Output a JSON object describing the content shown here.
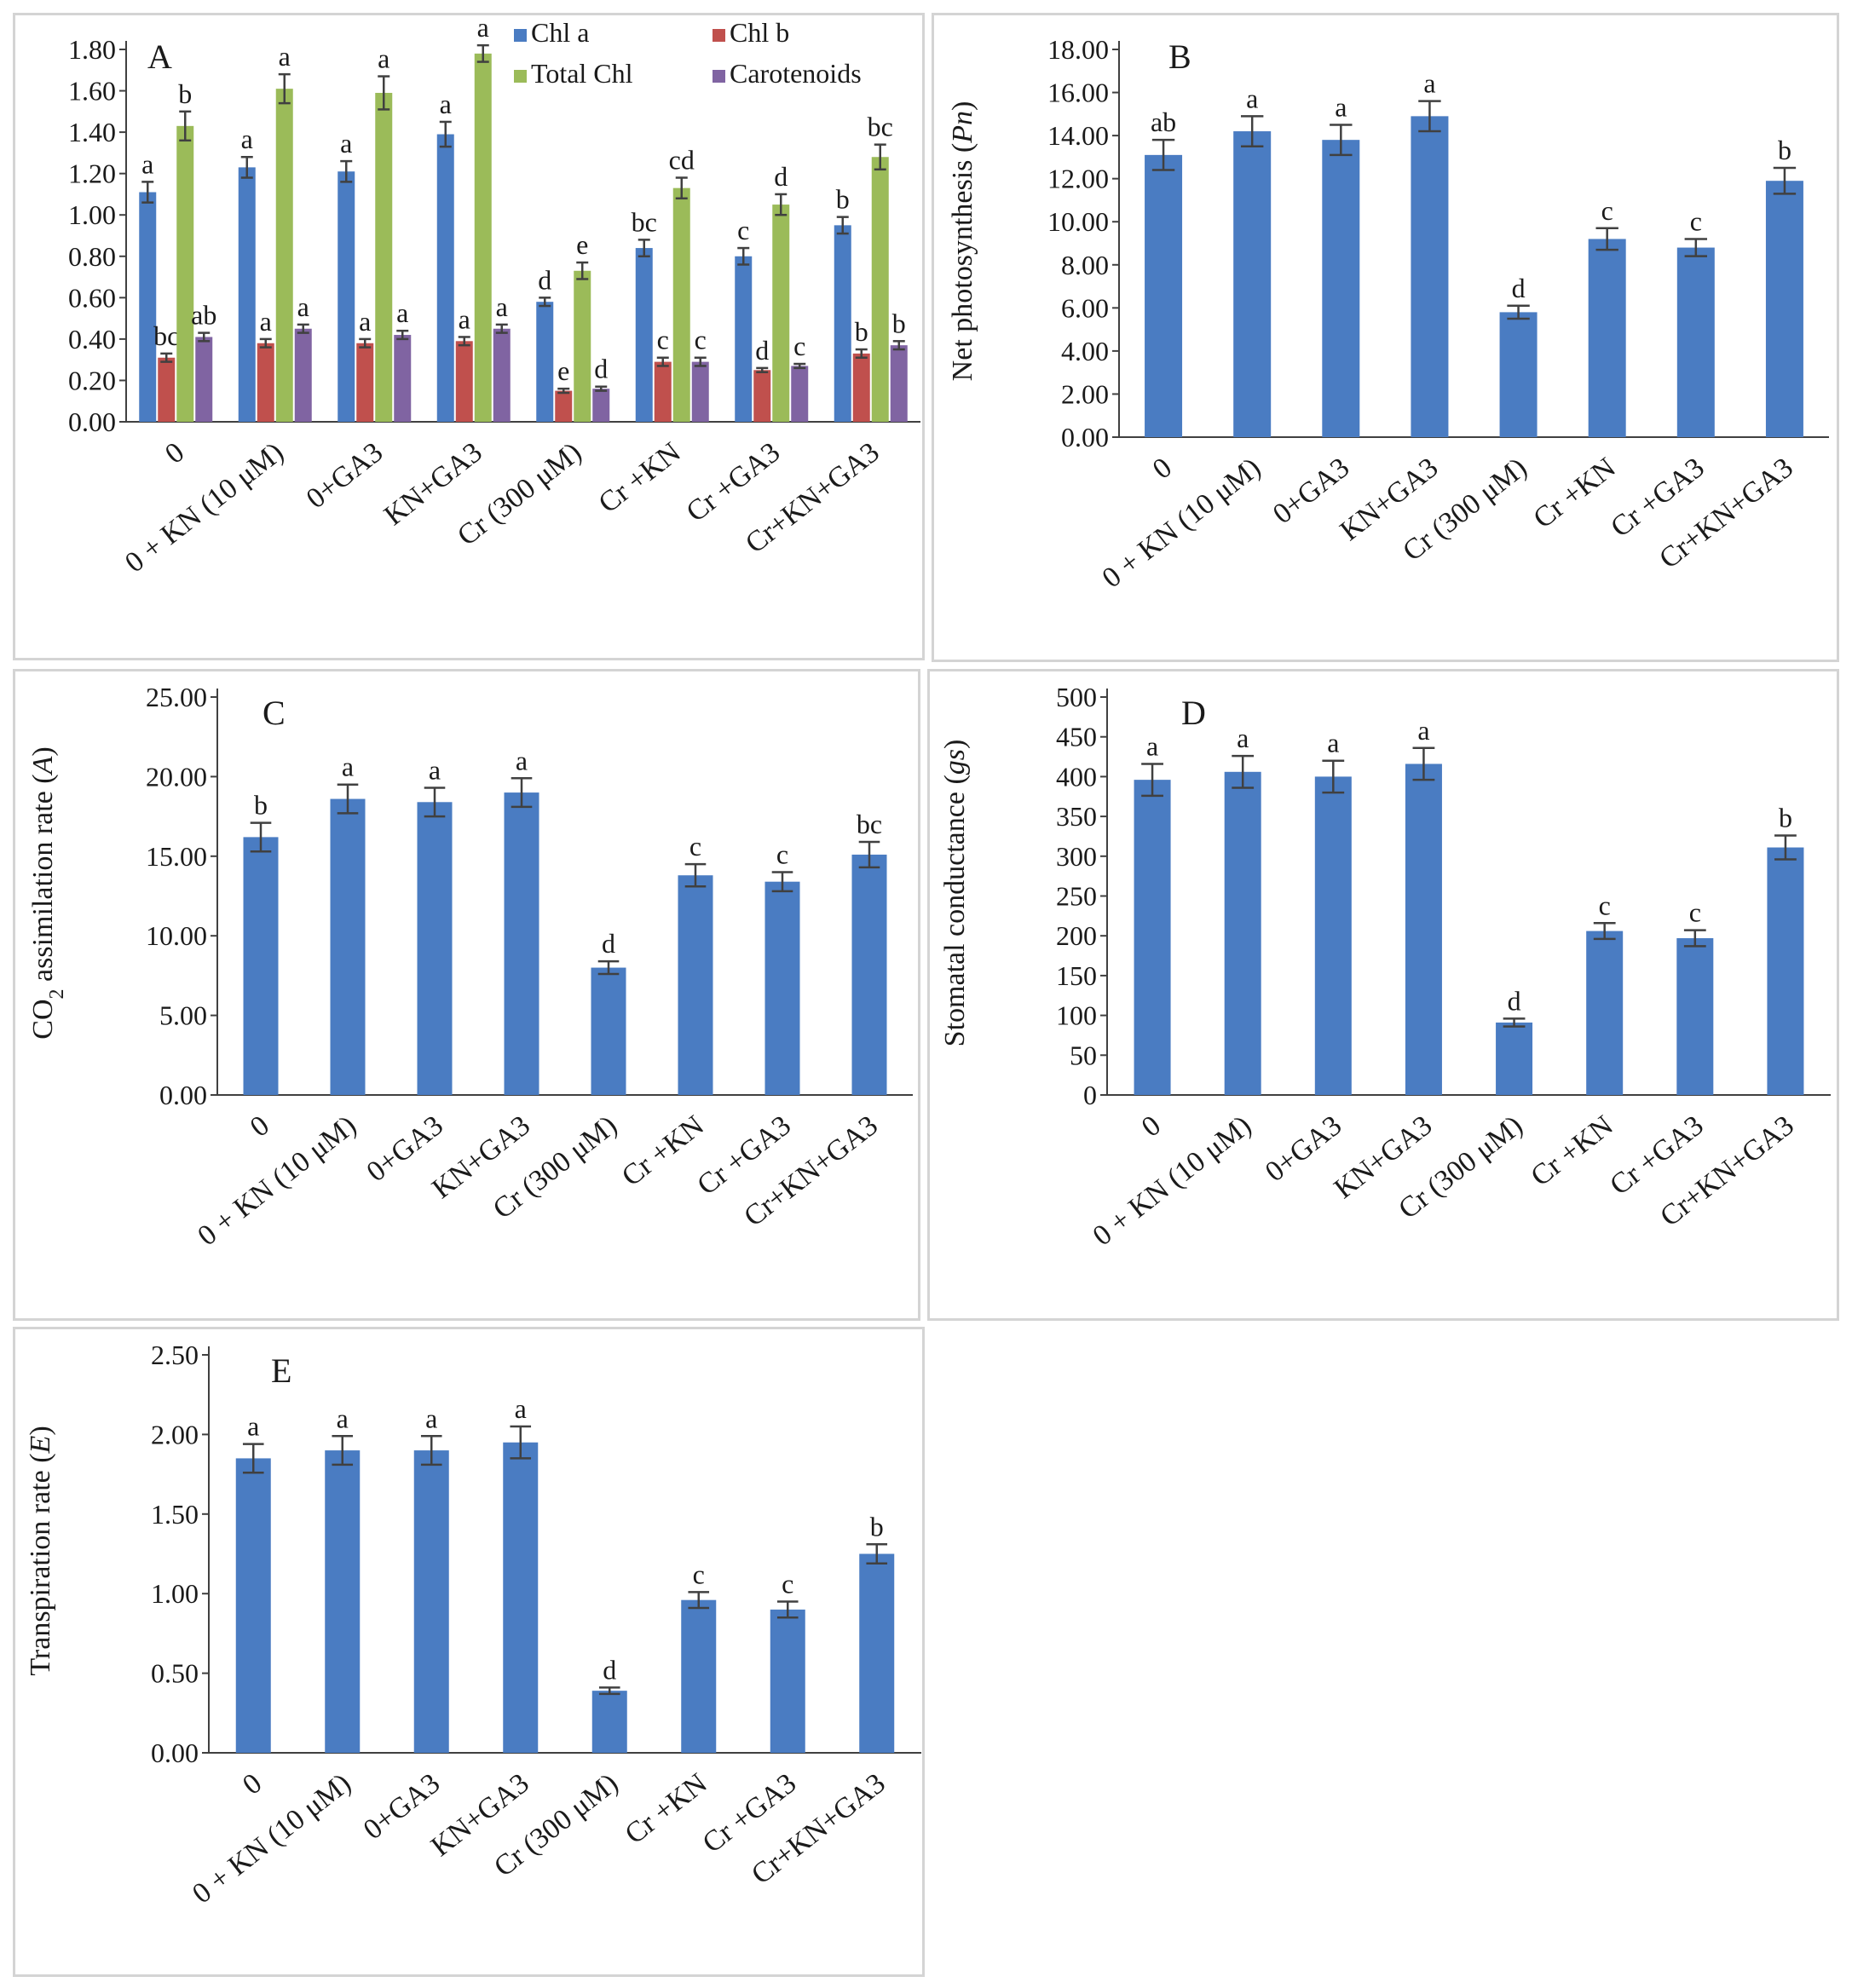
{
  "chart_data": [
    {
      "type": "bar",
      "panel_label": "A",
      "ylabel": "",
      "ylim": [
        0,
        1.8
      ],
      "yticks": [
        "0.00",
        "0.20",
        "0.40",
        "0.60",
        "0.80",
        "1.00",
        "1.20",
        "1.40",
        "1.60",
        "1.80"
      ],
      "categories": [
        "0",
        "0 + KN (10 μM)",
        "0+GA3",
        "KN+GA3",
        "Cr (300 μM)",
        "Cr +KN",
        "Cr +GA3",
        "Cr+KN+GA3"
      ],
      "series": [
        {
          "name": "Chl a",
          "color": "#4a7cc2",
          "values": [
            1.11,
            1.23,
            1.21,
            1.39,
            0.58,
            0.84,
            0.8,
            0.95
          ],
          "errors": [
            0.05,
            0.05,
            0.05,
            0.06,
            0.02,
            0.04,
            0.04,
            0.04
          ],
          "labels": [
            "a",
            "a",
            "a",
            "a",
            "d",
            "bc",
            "c",
            "b"
          ]
        },
        {
          "name": "Chl b",
          "color": "#c0504d",
          "values": [
            0.31,
            0.38,
            0.38,
            0.39,
            0.15,
            0.29,
            0.25,
            0.33
          ],
          "errors": [
            0.02,
            0.02,
            0.02,
            0.02,
            0.01,
            0.02,
            0.01,
            0.02
          ],
          "labels": [
            "bc",
            "a",
            "a",
            "a",
            "e",
            "c",
            "d",
            "b"
          ]
        },
        {
          "name": "Total Chl",
          "color": "#9bbb59",
          "values": [
            1.43,
            1.61,
            1.59,
            1.78,
            0.73,
            1.13,
            1.05,
            1.28
          ],
          "errors": [
            0.07,
            0.07,
            0.08,
            0.04,
            0.04,
            0.05,
            0.05,
            0.06
          ],
          "labels": [
            "b",
            "a",
            "a",
            "a",
            "e",
            "cd",
            "d",
            "bc"
          ]
        },
        {
          "name": "Carotenoids",
          "color": "#8064a2",
          "values": [
            0.41,
            0.45,
            0.42,
            0.45,
            0.16,
            0.29,
            0.27,
            0.37
          ],
          "errors": [
            0.02,
            0.02,
            0.02,
            0.02,
            0.01,
            0.02,
            0.01,
            0.02
          ],
          "labels": [
            "ab",
            "a",
            "a",
            "a",
            "d",
            "c",
            "c",
            "b"
          ]
        }
      ]
    },
    {
      "type": "bar",
      "panel_label": "B",
      "ylabel": "Net photosynthesis (",
      "ylabel_italic": "Pn",
      "ylabel_end": ")",
      "ylim": [
        0,
        18
      ],
      "yticks": [
        "0.00",
        "2.00",
        "4.00",
        "6.00",
        "8.00",
        "10.00",
        "12.00",
        "14.00",
        "16.00",
        "18.00"
      ],
      "categories": [
        "0",
        "0 + KN (10 μM)",
        "0+GA3",
        "KN+GA3",
        "Cr (300 μM)",
        "Cr +KN",
        "Cr +GA3",
        "Cr+KN+GA3"
      ],
      "series": [
        {
          "name": "Net photosynthesis",
          "color": "#4a7cc2",
          "values": [
            13.1,
            14.2,
            13.8,
            14.9,
            5.8,
            9.2,
            8.8,
            11.9
          ],
          "errors": [
            0.7,
            0.7,
            0.7,
            0.7,
            0.3,
            0.5,
            0.4,
            0.6
          ],
          "labels": [
            "ab",
            "a",
            "a",
            "a",
            "d",
            "c",
            "c",
            "b"
          ]
        }
      ]
    },
    {
      "type": "bar",
      "panel_label": "C",
      "ylabel": "CO",
      "ylabel_sub": "2",
      "ylabel_mid": " assimilation rate (",
      "ylabel_italic": "A",
      "ylabel_end": ")",
      "ylim": [
        0,
        25
      ],
      "yticks": [
        "0.00",
        "5.00",
        "10.00",
        "15.00",
        "20.00",
        "25.00"
      ],
      "categories": [
        "0",
        "0 + KN (10 μM)",
        "0+GA3",
        "KN+GA3",
        "Cr (300 μM)",
        "Cr +KN",
        "Cr +GA3",
        "Cr+KN+GA3"
      ],
      "series": [
        {
          "name": "CO2 assimilation rate",
          "color": "#4a7cc2",
          "values": [
            16.2,
            18.6,
            18.4,
            19.0,
            8.0,
            13.8,
            13.4,
            15.1
          ],
          "errors": [
            0.9,
            0.9,
            0.9,
            0.9,
            0.4,
            0.7,
            0.6,
            0.8
          ],
          "labels": [
            "b",
            "a",
            "a",
            "a",
            "d",
            "c",
            "c",
            "bc"
          ]
        }
      ]
    },
    {
      "type": "bar",
      "panel_label": "D",
      "ylabel": "Stomatal conductance (",
      "ylabel_italic": "gs",
      "ylabel_end": ")",
      "ylim": [
        0,
        500
      ],
      "yticks": [
        "0",
        "50",
        "100",
        "150",
        "200",
        "250",
        "300",
        "350",
        "400",
        "450",
        "500"
      ],
      "categories": [
        "0",
        "0 + KN (10 μM)",
        "0+GA3",
        "KN+GA3",
        "Cr (300 μM)",
        "Cr +KN",
        "Cr +GA3",
        "Cr+KN+GA3"
      ],
      "series": [
        {
          "name": "Stomatal conductance",
          "color": "#4a7cc2",
          "values": [
            396,
            406,
            400,
            416,
            91,
            206,
            197,
            311
          ],
          "errors": [
            20,
            20,
            20,
            20,
            5,
            10,
            10,
            15
          ],
          "labels": [
            "a",
            "a",
            "a",
            "a",
            "d",
            "c",
            "c",
            "b"
          ]
        }
      ]
    },
    {
      "type": "bar",
      "panel_label": "E",
      "ylabel": "Transpiration rate (",
      "ylabel_italic": "E",
      "ylabel_end": ")",
      "ylim": [
        0,
        2.5
      ],
      "yticks": [
        "0.00",
        "0.50",
        "1.00",
        "1.50",
        "2.00",
        "2.50"
      ],
      "categories": [
        "0",
        "0 + KN (10 μM)",
        "0+GA3",
        "KN+GA3",
        "Cr (300 μM)",
        "Cr +KN",
        "Cr +GA3",
        "Cr+KN+GA3"
      ],
      "series": [
        {
          "name": "Transpiration rate",
          "color": "#4a7cc2",
          "values": [
            1.85,
            1.9,
            1.9,
            1.95,
            0.39,
            0.96,
            0.9,
            1.25
          ],
          "errors": [
            0.09,
            0.09,
            0.09,
            0.1,
            0.02,
            0.05,
            0.05,
            0.06
          ],
          "labels": [
            "a",
            "a",
            "a",
            "a",
            "d",
            "c",
            "c",
            "b"
          ]
        }
      ]
    }
  ]
}
